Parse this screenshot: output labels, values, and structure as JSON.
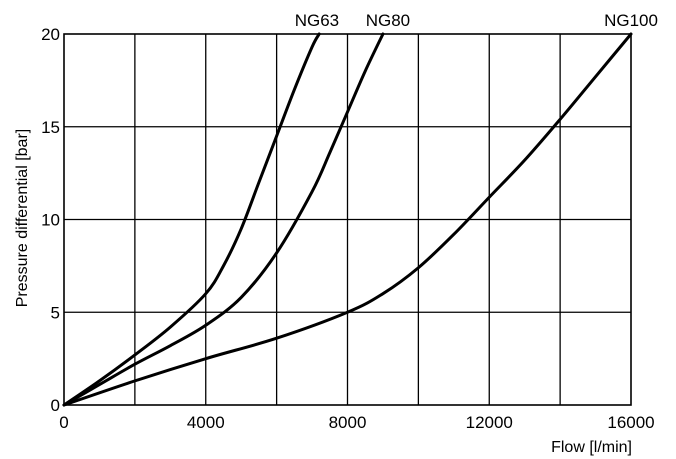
{
  "chart_data": {
    "type": "line",
    "title": "",
    "xlabel": "Flow [l/min]",
    "ylabel": "Pressure differential [bar]",
    "xlim": [
      0,
      16000
    ],
    "ylim": [
      0,
      20
    ],
    "grid": true,
    "legend": "none",
    "x_ticks": [
      0,
      4000,
      8000,
      12000,
      16000
    ],
    "x_tick_labels": [
      "0",
      "4000",
      "8000",
      "12000",
      "16000"
    ],
    "x_minor_gridlines": [
      2000,
      6000,
      10000,
      14000
    ],
    "y_ticks": [
      0,
      5,
      10,
      15,
      20
    ],
    "y_tick_labels": [
      "0",
      "5",
      "10",
      "15",
      "20"
    ],
    "series": [
      {
        "name": "NG63",
        "x": [
          0,
          1000,
          2000,
          3000,
          4000,
          4500,
          5000,
          5500,
          6000,
          6500,
          7000,
          7200
        ],
        "y": [
          0,
          1.3,
          2.7,
          4.2,
          6.0,
          7.5,
          9.5,
          12.0,
          14.5,
          17.0,
          19.3,
          20
        ]
      },
      {
        "name": "NG80",
        "x": [
          0,
          1000,
          2000,
          3000,
          4000,
          5000,
          6000,
          7000,
          7500,
          8000,
          8500,
          9000
        ],
        "y": [
          0,
          1.1,
          2.2,
          3.2,
          4.3,
          5.8,
          8.2,
          11.5,
          13.6,
          15.8,
          18.0,
          20
        ]
      },
      {
        "name": "NG100",
        "x": [
          0,
          2000,
          4000,
          6000,
          8000,
          9000,
          10000,
          11000,
          12000,
          13000,
          14000,
          15000,
          16000
        ],
        "y": [
          0,
          1.3,
          2.5,
          3.6,
          5.0,
          6.0,
          7.4,
          9.2,
          11.2,
          13.2,
          15.4,
          17.7,
          20
        ]
      }
    ],
    "colors": {
      "line": "#000000",
      "grid": "#000000",
      "background": "#ffffff"
    }
  }
}
